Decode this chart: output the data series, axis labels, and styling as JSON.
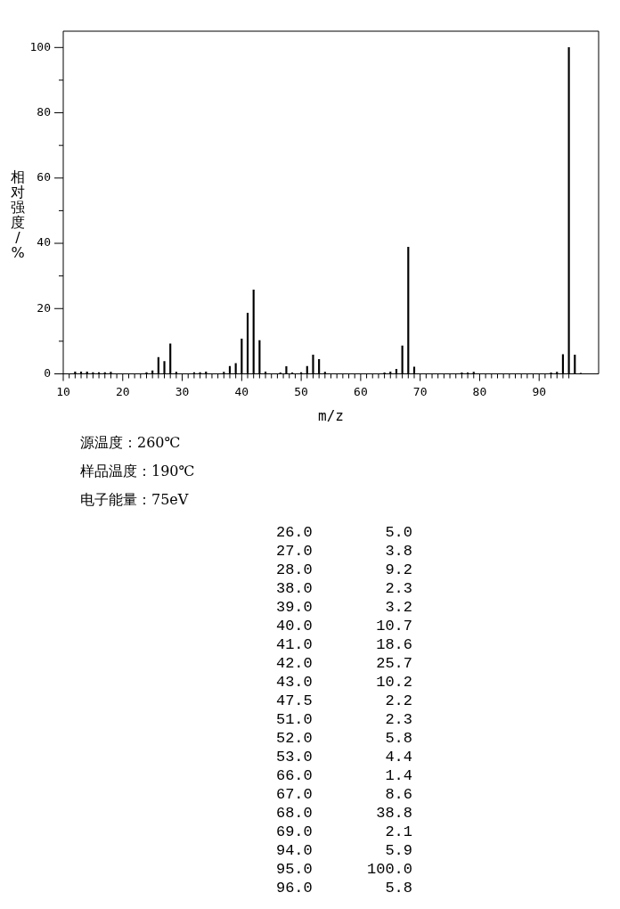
{
  "chart_data": [
    {
      "type": "bar",
      "xlabel": "m/z",
      "ylabel": "相对强度/%",
      "annotations": [
        "源温度：260℃",
        "样品温度：190℃",
        "电子能量：75eV"
      ],
      "x": [
        12,
        13,
        14,
        15,
        16,
        17,
        18,
        24,
        25,
        26,
        27,
        28,
        29,
        32,
        33,
        34,
        37,
        38,
        39,
        40,
        41,
        42,
        43,
        44,
        46.5,
        47.5,
        48.5,
        50,
        51,
        52,
        53,
        54,
        64,
        65,
        66,
        67,
        68,
        69,
        77,
        78,
        79,
        92,
        93,
        94,
        95,
        96,
        97
      ],
      "values": [
        0.6,
        0.6,
        0.6,
        0.4,
        0.4,
        0.4,
        0.5,
        0.4,
        0.9,
        5.0,
        3.8,
        9.2,
        0.5,
        0.4,
        0.4,
        0.6,
        0.5,
        2.3,
        3.2,
        10.7,
        18.6,
        25.7,
        10.2,
        0.6,
        0.3,
        2.2,
        0.3,
        0.4,
        2.3,
        5.8,
        4.4,
        0.5,
        0.3,
        0.6,
        1.4,
        8.6,
        38.8,
        2.1,
        0.3,
        0.3,
        0.5,
        0.3,
        0.5,
        5.9,
        100.0,
        5.8,
        0.2
      ],
      "color": "#000000",
      "xlim": [
        10,
        100
      ],
      "xticks": [
        10,
        {
          "value": 11,
          "label": null
        },
        {
          "value": 12,
          "label": null
        },
        {
          "value": 13,
          "label": null
        },
        {
          "value": 14,
          "label": null
        },
        {
          "value": 15,
          "label": null
        },
        {
          "value": 16,
          "label": null
        },
        {
          "value": 17,
          "label": null
        },
        {
          "value": 18,
          "label": null
        },
        {
          "value": 19,
          "label": null
        },
        20,
        {
          "value": 21,
          "label": null
        },
        {
          "value": 22,
          "label": null
        },
        {
          "value": 23,
          "label": null
        },
        {
          "value": 24,
          "label": null
        },
        {
          "value": 25,
          "label": null
        },
        {
          "value": 26,
          "label": null
        },
        {
          "value": 27,
          "label": null
        },
        {
          "value": 28,
          "label": null
        },
        {
          "value": 29,
          "label": null
        },
        30,
        {
          "value": 31,
          "label": null
        },
        {
          "value": 32,
          "label": null
        },
        {
          "value": 33,
          "label": null
        },
        {
          "value": 34,
          "label": null
        },
        {
          "value": 35,
          "label": null
        },
        {
          "value": 36,
          "label": null
        },
        {
          "value": 37,
          "label": null
        },
        {
          "value": 38,
          "label": null
        },
        {
          "value": 39,
          "label": null
        },
        40,
        {
          "value": 41,
          "label": null
        },
        {
          "value": 42,
          "label": null
        },
        {
          "value": 43,
          "label": null
        },
        {
          "value": 44,
          "label": null
        },
        {
          "value": 45,
          "label": null
        },
        {
          "value": 46,
          "label": null
        },
        {
          "value": 47,
          "label": null
        },
        {
          "value": 48,
          "label": null
        },
        {
          "value": 49,
          "label": null
        },
        50,
        {
          "value": 51,
          "label": null
        },
        {
          "value": 52,
          "label": null
        },
        {
          "value": 53,
          "label": null
        },
        {
          "value": 54,
          "label": null
        },
        {
          "value": 55,
          "label": null
        },
        {
          "value": 56,
          "label": null
        },
        {
          "value": 57,
          "label": null
        },
        {
          "value": 58,
          "label": null
        },
        {
          "value": 59,
          "label": null
        },
        60,
        {
          "value": 61,
          "label": null
        },
        {
          "value": 62,
          "label": null
        },
        {
          "value": 63,
          "label": null
        },
        {
          "value": 64,
          "label": null
        },
        {
          "value": 65,
          "label": null
        },
        {
          "value": 66,
          "label": null
        },
        {
          "value": 67,
          "label": null
        },
        {
          "value": 68,
          "label": null
        },
        {
          "value": 69,
          "label": null
        },
        70,
        {
          "value": 71,
          "label": null
        },
        {
          "value": 72,
          "label": null
        },
        {
          "value": 73,
          "label": null
        },
        {
          "value": 74,
          "label": null
        },
        {
          "value": 75,
          "label": null
        },
        {
          "value": 76,
          "label": null
        },
        {
          "value": 77,
          "label": null
        },
        {
          "value": 78,
          "label": null
        },
        {
          "value": 79,
          "label": null
        },
        80,
        {
          "value": 81,
          "label": null
        },
        {
          "value": 82,
          "label": null
        },
        {
          "value": 83,
          "label": null
        },
        {
          "value": 84,
          "label": null
        },
        {
          "value": 85,
          "label": null
        },
        {
          "value": 86,
          "label": null
        },
        {
          "value": 87,
          "label": null
        },
        {
          "value": 88,
          "label": null
        },
        {
          "value": 89,
          "label": null
        },
        90,
        {
          "value": 91,
          "label": null
        },
        {
          "value": 92,
          "label": null
        },
        {
          "value": 93,
          "label": null
        },
        {
          "value": 94,
          "label": null
        },
        {
          "value": 95,
          "label": null
        }
      ],
      "ylim": [
        0,
        105
      ],
      "yticks": [
        0,
        {
          "value": 10,
          "label": null
        },
        20,
        {
          "value": 30,
          "label": null
        },
        40,
        {
          "value": 50,
          "label": null
        },
        60,
        {
          "value": 70,
          "label": null
        },
        80,
        {
          "value": 90,
          "label": null
        },
        100
      ]
    },
    {
      "type": "other",
      "annotations": [
        "26.0        5.0",
        "27.0        3.8",
        "28.0        9.2",
        "38.0        2.3",
        "39.0        3.2",
        "40.0       10.7",
        "41.0       18.6",
        "42.0       25.7",
        "43.0       10.2",
        "47.5        2.2",
        "51.0        2.3",
        "52.0        5.8",
        "53.0        4.4",
        "66.0        1.4",
        "67.0        8.6",
        "68.0       38.8",
        "69.0        2.1",
        "94.0        5.9",
        "95.0      100.0",
        "96.0        5.8"
      ]
    }
  ]
}
